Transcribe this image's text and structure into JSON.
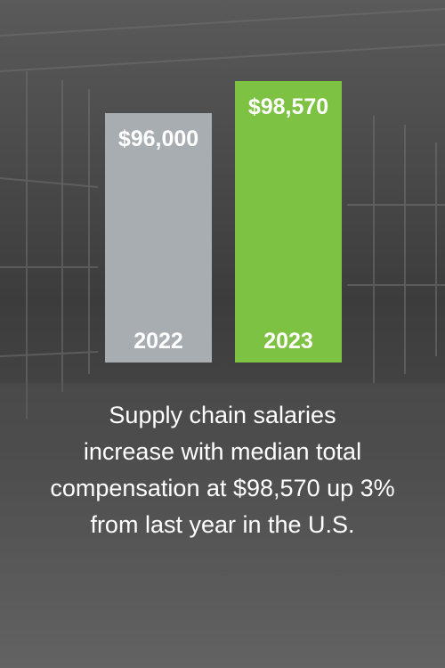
{
  "chart_data": {
    "type": "bar",
    "categories": [
      "2022",
      "2023"
    ],
    "values": [
      96000,
      98570
    ],
    "value_labels": [
      "$96,000",
      "$98,570"
    ],
    "colors": [
      "#a8adb2",
      "#7dc242"
    ],
    "ylim": [
      76000,
      100000
    ],
    "caption_lines": [
      "Supply chain salaries",
      "increase with median total",
      "compensation at $98,570 up 3%",
      "from last year in the U.S."
    ]
  }
}
